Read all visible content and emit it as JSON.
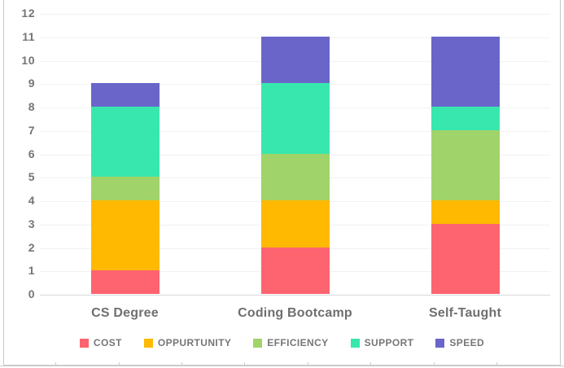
{
  "chart_data": {
    "type": "bar",
    "stacked": true,
    "title": "",
    "xlabel": "",
    "ylabel": "",
    "categories": [
      "CS Degree",
      "Coding Bootcamp",
      "Self-Taught"
    ],
    "series": [
      {
        "name": "COST",
        "color": "#FD646F",
        "values": [
          1,
          2,
          3
        ]
      },
      {
        "name": "OPPURTUNITY",
        "color": "#FFB900",
        "values": [
          3,
          2,
          1
        ]
      },
      {
        "name": "EFFICIENCY",
        "color": "#A0D36A",
        "values": [
          1,
          2,
          3
        ]
      },
      {
        "name": "SUPPORT",
        "color": "#38E7AD",
        "values": [
          3,
          3,
          1
        ]
      },
      {
        "name": "SPEED",
        "color": "#6A66C9",
        "values": [
          1,
          2,
          3
        ]
      }
    ],
    "totals": [
      9,
      11,
      11
    ],
    "ylim": [
      0,
      12
    ],
    "ytick_step": 1,
    "yticks": [
      0,
      1,
      2,
      3,
      4,
      5,
      6,
      7,
      8,
      9,
      10,
      11,
      12
    ],
    "grid": true,
    "legend_position": "bottom",
    "text_color": "#757575",
    "gridline_color": "#F1F1F1",
    "axis_line_color": "#D9D9D9",
    "frame_border_color": "#C9C9C9"
  }
}
